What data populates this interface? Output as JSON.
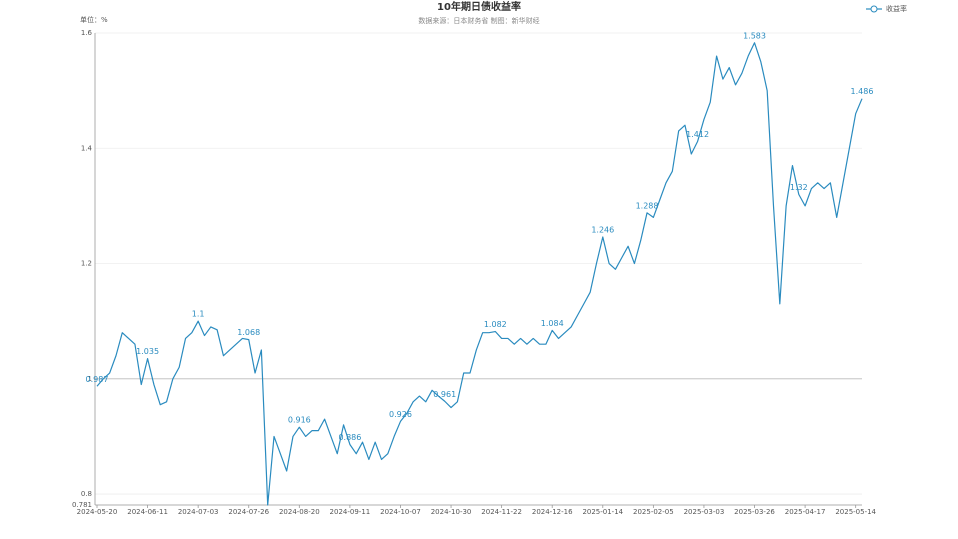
{
  "chart_data": {
    "type": "line",
    "title": "10年期日债收益率",
    "subtitle": "数据来源：日本财务省    制图：新华财经",
    "y_label": "单位：%",
    "legend": "top-right",
    "grid": true,
    "ylim": [
      0.781,
      1.6
    ],
    "yticks": [
      0.781,
      0.8,
      1,
      1.2,
      1.4,
      1.6
    ],
    "categories": [
      "2024-05-20",
      null,
      null,
      null,
      null,
      null,
      null,
      null,
      "2024-06-11",
      null,
      null,
      null,
      null,
      null,
      null,
      null,
      "2024-07-03",
      null,
      null,
      null,
      null,
      null,
      null,
      null,
      "2024-07-26",
      null,
      null,
      null,
      null,
      null,
      null,
      null,
      "2024-08-20",
      null,
      null,
      null,
      null,
      null,
      null,
      null,
      "2024-09-11",
      null,
      null,
      null,
      null,
      null,
      null,
      null,
      "2024-10-07",
      null,
      null,
      null,
      null,
      null,
      null,
      null,
      "2024-10-30",
      null,
      null,
      null,
      null,
      null,
      null,
      null,
      "2024-11-22",
      null,
      null,
      null,
      null,
      null,
      null,
      null,
      "2024-12-16",
      null,
      null,
      null,
      null,
      null,
      null,
      null,
      "2025-01-14",
      null,
      null,
      null,
      null,
      null,
      null,
      null,
      "2025-02-05",
      null,
      null,
      null,
      null,
      null,
      null,
      null,
      "2025-03-03",
      null,
      null,
      null,
      null,
      null,
      null,
      null,
      "2025-03-26",
      null,
      null,
      null,
      null,
      null,
      null,
      null,
      "2025-04-17",
      null,
      null,
      null,
      null,
      null,
      null,
      null,
      "2025-05-14",
      null
    ],
    "series": [
      {
        "name": "收益率",
        "color": "#2a8bbf",
        "values": [
          0.987,
          1.0,
          1.01,
          1.04,
          1.08,
          1.07,
          1.06,
          0.99,
          1.035,
          0.99,
          0.955,
          0.96,
          1.0,
          1.02,
          1.07,
          1.08,
          1.1,
          1.075,
          1.09,
          1.085,
          1.04,
          1.05,
          1.06,
          1.07,
          1.068,
          1.01,
          1.05,
          0.781,
          0.9,
          0.87,
          0.84,
          0.9,
          0.916,
          0.9,
          0.91,
          0.91,
          0.93,
          0.9,
          0.87,
          0.92,
          0.886,
          0.87,
          0.89,
          0.86,
          0.89,
          0.86,
          0.87,
          0.9,
          0.926,
          0.94,
          0.96,
          0.97,
          0.96,
          0.98,
          0.97,
          0.961,
          0.95,
          0.96,
          1.01,
          1.01,
          1.05,
          1.08,
          1.08,
          1.082,
          1.07,
          1.07,
          1.06,
          1.07,
          1.06,
          1.07,
          1.06,
          1.06,
          1.084,
          1.07,
          1.08,
          1.09,
          1.11,
          1.13,
          1.15,
          1.2,
          1.246,
          1.2,
          1.19,
          1.21,
          1.23,
          1.2,
          1.24,
          1.288,
          1.28,
          1.31,
          1.34,
          1.36,
          1.43,
          1.44,
          1.39,
          1.412,
          1.45,
          1.48,
          1.56,
          1.52,
          1.54,
          1.51,
          1.53,
          1.56,
          1.583,
          1.55,
          1.5,
          1.3,
          1.13,
          1.3,
          1.37,
          1.32,
          1.3,
          1.33,
          1.34,
          1.33,
          1.34,
          1.28,
          1.34,
          1.4,
          1.46,
          1.486
        ],
        "value_labels": [
          "0.987",
          null,
          null,
          null,
          null,
          null,
          null,
          null,
          "1.035",
          null,
          null,
          null,
          null,
          null,
          null,
          null,
          "1.1",
          null,
          null,
          null,
          null,
          null,
          null,
          null,
          "1.068",
          null,
          null,
          null,
          null,
          null,
          null,
          null,
          "0.916",
          null,
          null,
          null,
          null,
          null,
          null,
          null,
          "0.886",
          null,
          null,
          null,
          null,
          null,
          null,
          null,
          "0.926",
          null,
          null,
          null,
          null,
          null,
          null,
          "0.961",
          null,
          null,
          null,
          null,
          null,
          null,
          null,
          "1.082",
          null,
          null,
          null,
          null,
          null,
          null,
          null,
          null,
          "1.084",
          null,
          null,
          null,
          null,
          null,
          null,
          null,
          "1.246",
          null,
          null,
          null,
          null,
          null,
          null,
          "1.288",
          null,
          null,
          null,
          null,
          null,
          null,
          null,
          "1.412",
          null,
          null,
          null,
          null,
          null,
          null,
          null,
          null,
          "1.583",
          null,
          null,
          null,
          null,
          null,
          null,
          "1.32",
          null,
          null,
          null,
          null,
          null,
          null,
          null,
          null,
          null,
          "1.486"
        ]
      }
    ]
  }
}
